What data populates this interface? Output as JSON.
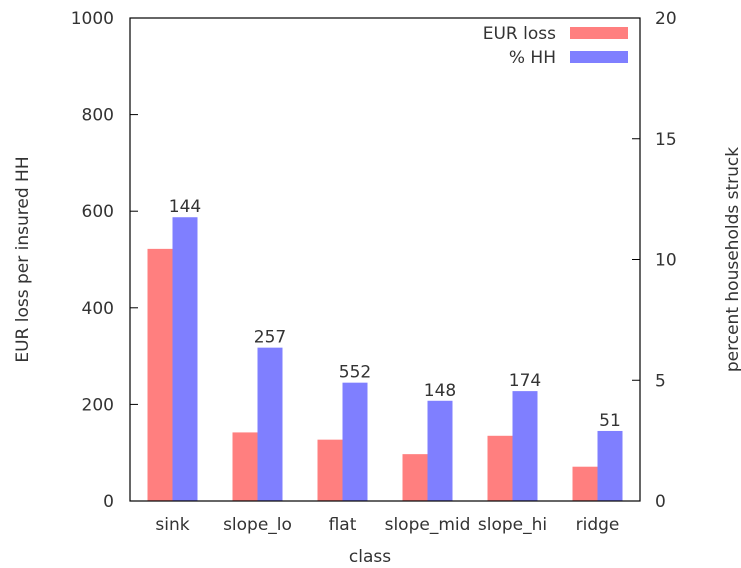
{
  "chart_data": {
    "type": "bar",
    "title": "",
    "xlabel": "class",
    "ylabel": "EUR loss per insured HH",
    "y2label": "percent households struck",
    "categories": [
      "sink",
      "slope_lo",
      "flat",
      "slope_mid",
      "slope_hi",
      "ridge"
    ],
    "ylim": [
      0,
      1000
    ],
    "y2lim": [
      0,
      20
    ],
    "yticks": [
      0,
      200,
      400,
      600,
      800,
      1000
    ],
    "y2ticks": [
      0,
      5,
      10,
      15,
      20
    ],
    "grid": false,
    "legend_position": "top-right",
    "series": [
      {
        "name": "EUR loss",
        "axis": "left",
        "color": "#ff7f7f",
        "values": [
          522,
          142,
          127,
          97,
          135,
          71
        ]
      },
      {
        "name": "% HH",
        "axis": "right",
        "color": "#7f7fff",
        "values": [
          11.75,
          6.35,
          4.9,
          4.15,
          4.55,
          2.9
        ]
      }
    ],
    "bar_labels": [
      "144",
      "257",
      "552",
      "148",
      "174",
      "51"
    ]
  }
}
